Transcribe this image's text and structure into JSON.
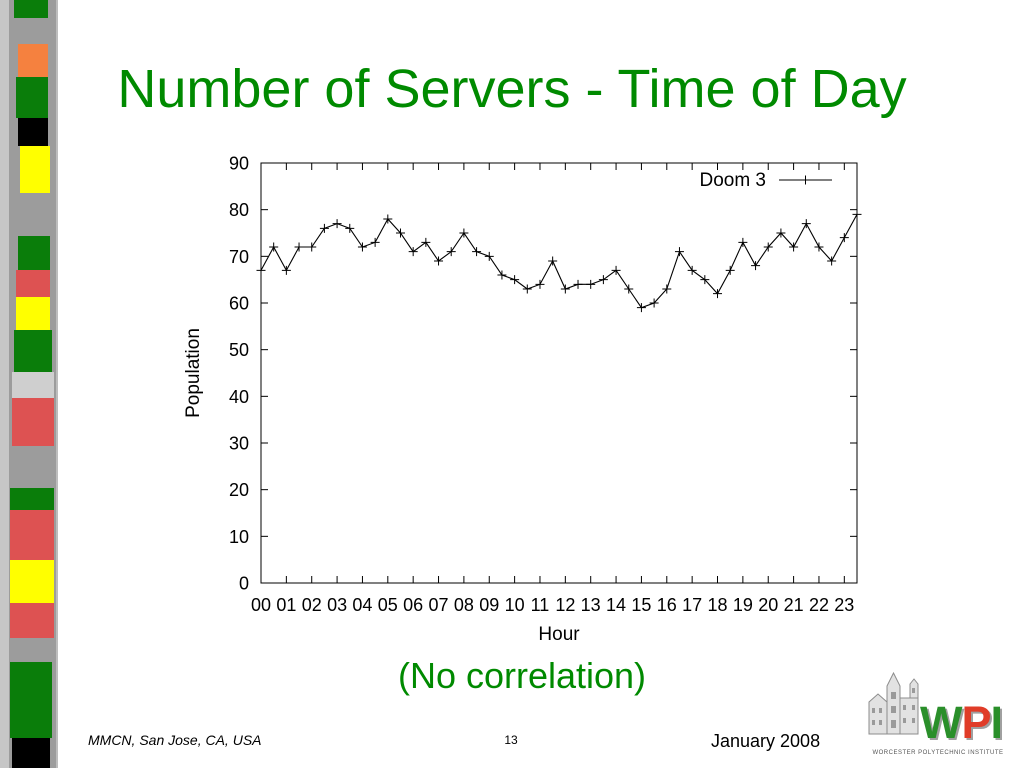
{
  "slide": {
    "title": "Number of Servers - Time of Day",
    "caption": "(No correlation)",
    "footer": {
      "location": "MMCN, San Jose, CA, USA",
      "page_number": "13",
      "date": "January 2008"
    },
    "logo": {
      "letters": [
        "W",
        "P",
        "I"
      ],
      "tagline": "WORCESTER POLYTECHNIC INSTITUTE"
    }
  },
  "theme": {
    "accent": "#008a00",
    "series_color": "#000000"
  },
  "chart_data": {
    "type": "line",
    "xlabel": "Hour",
    "ylabel": "Population",
    "xlim": [
      0,
      23.5
    ],
    "ylim": [
      0,
      90
    ],
    "x_ticks": [
      0,
      1,
      2,
      3,
      4,
      5,
      6,
      7,
      8,
      9,
      10,
      11,
      12,
      13,
      14,
      15,
      16,
      17,
      18,
      19,
      20,
      21,
      22,
      23
    ],
    "x_tick_labels": [
      "00",
      "01",
      "02",
      "03",
      "04",
      "05",
      "06",
      "07",
      "08",
      "09",
      "10",
      "11",
      "12",
      "13",
      "14",
      "15",
      "16",
      "17",
      "18",
      "19",
      "20",
      "21",
      "22",
      "23"
    ],
    "y_ticks": [
      0,
      10,
      20,
      30,
      40,
      50,
      60,
      70,
      80,
      90
    ],
    "y_tick_labels": [
      "0",
      "10",
      "20",
      "30",
      "40",
      "50",
      "60",
      "70",
      "80",
      "90"
    ],
    "grid": false,
    "legend": "top-right",
    "series": [
      {
        "name": "Doom 3",
        "marker": "+",
        "x": [
          0,
          0.5,
          1,
          1.5,
          2,
          2.5,
          3,
          3.5,
          4,
          4.5,
          5,
          5.5,
          6,
          6.5,
          7,
          7.5,
          8,
          8.5,
          9,
          9.5,
          10,
          10.5,
          11,
          11.5,
          12,
          12.5,
          13,
          13.5,
          14,
          14.5,
          15,
          15.5,
          16,
          16.5,
          17,
          17.5,
          18,
          18.5,
          19,
          19.5,
          20,
          20.5,
          21,
          21.5,
          22,
          22.5,
          23,
          23.5
        ],
        "y": [
          67,
          72,
          67,
          72,
          72,
          76,
          77,
          76,
          72,
          73,
          78,
          75,
          71,
          73,
          69,
          71,
          75,
          71,
          70,
          66,
          65,
          63,
          64,
          69,
          63,
          64,
          64,
          65,
          67,
          63,
          59,
          60,
          63,
          71,
          67,
          65,
          62,
          67,
          73,
          68,
          72,
          75,
          72,
          77,
          72,
          69,
          74,
          79
        ]
      }
    ]
  }
}
